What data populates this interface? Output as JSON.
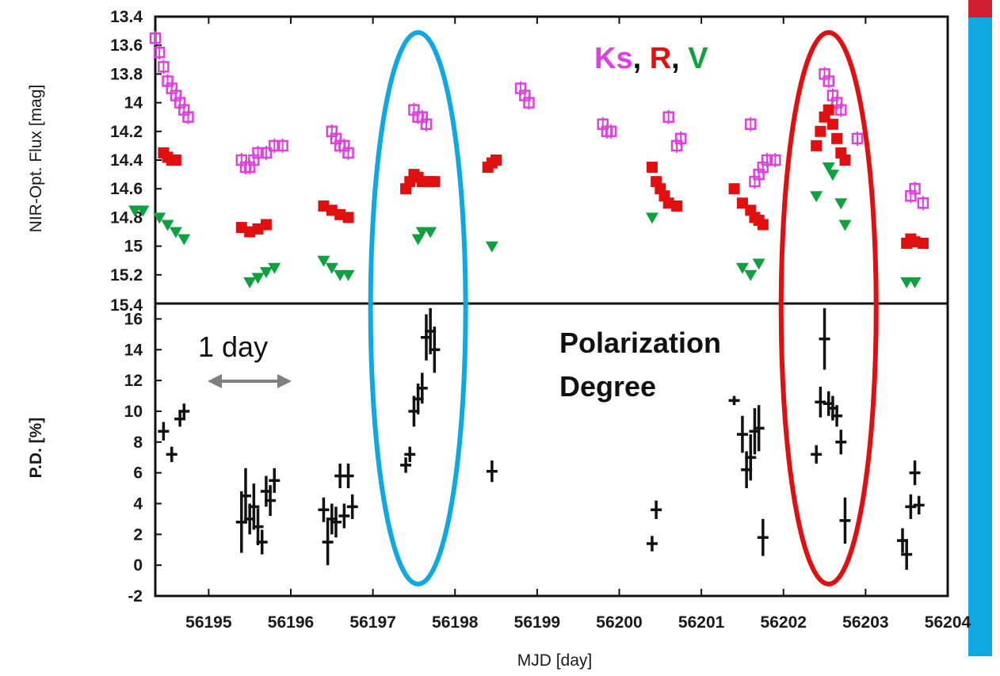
{
  "chart_data": [
    {
      "type": "scatter",
      "panel": "top",
      "ylabel": "NIR-Opt. Flux [mag]",
      "ylim": [
        13.4,
        15.4
      ],
      "y_inverted": true,
      "yticks": [
        "13.4",
        "13.6",
        "13.8",
        "14",
        "14.2",
        "14.4",
        "14.6",
        "14.8",
        "15",
        "15.2"
      ],
      "bottom_tick_label": "15.4",
      "legend": {
        "parts": [
          {
            "text": "Ks",
            "color": "#e040e0"
          },
          {
            "text": ", ",
            "color": "#111111"
          },
          {
            "text": "R",
            "color": "#e01010"
          },
          {
            "text": ", ",
            "color": "#111111"
          },
          {
            "text": "V",
            "color": "#10a040"
          }
        ]
      },
      "series": [
        {
          "name": "Ks",
          "color": "#e040e0",
          "marker": "square",
          "x": [
            56194.35,
            56194.4,
            56194.45,
            56194.5,
            56194.55,
            56194.6,
            56194.65,
            56194.7,
            56194.75,
            56195.4,
            56195.45,
            56195.5,
            56195.55,
            56195.6,
            56195.7,
            56195.8,
            56195.9,
            56196.5,
            56196.55,
            56196.6,
            56196.65,
            56196.7,
            56197.5,
            56197.55,
            56197.6,
            56197.65,
            56198.8,
            56198.85,
            56198.9,
            56199.8,
            56199.85,
            56199.9,
            56200.6,
            56200.7,
            56200.75,
            56201.6,
            56201.65,
            56201.7,
            56201.75,
            56201.8,
            56201.9,
            56202.5,
            56202.55,
            56202.6,
            56202.65,
            56202.7,
            56202.9,
            56203.55,
            56203.6,
            56203.7
          ],
          "y": [
            13.55,
            13.65,
            13.75,
            13.85,
            13.9,
            13.95,
            14.0,
            14.05,
            14.1,
            14.4,
            14.45,
            14.45,
            14.4,
            14.35,
            14.35,
            14.3,
            14.3,
            14.2,
            14.25,
            14.3,
            14.3,
            14.35,
            14.05,
            14.1,
            14.1,
            14.15,
            13.9,
            13.95,
            14.0,
            14.15,
            14.2,
            14.2,
            14.1,
            14.3,
            14.25,
            14.15,
            14.55,
            14.5,
            14.45,
            14.4,
            14.4,
            13.8,
            13.85,
            13.95,
            14.0,
            14.05,
            14.25,
            14.65,
            14.6,
            14.7
          ]
        },
        {
          "name": "R",
          "color": "#e01010",
          "marker": "square",
          "x": [
            56194.45,
            56194.5,
            56194.55,
            56194.6,
            56195.4,
            56195.5,
            56195.6,
            56195.7,
            56196.4,
            56196.5,
            56196.6,
            56196.7,
            56197.4,
            56197.45,
            56197.5,
            56197.55,
            56197.6,
            56197.7,
            56197.75,
            56198.4,
            56198.45,
            56198.5,
            56200.4,
            56200.45,
            56200.5,
            56200.55,
            56200.6,
            56200.7,
            56201.4,
            56201.5,
            56201.6,
            56201.65,
            56201.7,
            56201.75,
            56202.4,
            56202.45,
            56202.5,
            56202.55,
            56202.6,
            56202.65,
            56202.7,
            56202.75,
            56203.5,
            56203.55,
            56203.6,
            56203.7
          ],
          "y": [
            14.35,
            14.38,
            14.4,
            14.4,
            14.87,
            14.9,
            14.88,
            14.85,
            14.72,
            14.75,
            14.78,
            14.8,
            14.6,
            14.55,
            14.5,
            14.52,
            14.55,
            14.55,
            14.55,
            14.45,
            14.42,
            14.4,
            14.45,
            14.55,
            14.6,
            14.65,
            14.7,
            14.72,
            14.6,
            14.7,
            14.75,
            14.8,
            14.82,
            14.85,
            14.3,
            14.2,
            14.1,
            14.05,
            14.15,
            14.25,
            14.35,
            14.4,
            14.98,
            14.95,
            14.97,
            14.98
          ]
        },
        {
          "name": "V",
          "color": "#10a040",
          "marker": "triangle-down",
          "x": [
            56194.1,
            56194.2,
            56194.4,
            56194.5,
            56194.6,
            56194.7,
            56195.5,
            56195.6,
            56195.7,
            56195.8,
            56196.4,
            56196.5,
            56196.6,
            56196.7,
            56197.55,
            56197.6,
            56197.7,
            56198.45,
            56200.4,
            56201.5,
            56201.6,
            56201.7,
            56202.4,
            56202.55,
            56202.6,
            56202.7,
            56202.75,
            56203.5,
            56203.6
          ],
          "y": [
            14.75,
            14.75,
            14.8,
            14.85,
            14.9,
            14.95,
            15.25,
            15.22,
            15.18,
            15.15,
            15.1,
            15.15,
            15.2,
            15.2,
            14.95,
            14.9,
            14.9,
            15.0,
            14.8,
            15.15,
            15.2,
            15.12,
            14.65,
            14.45,
            14.5,
            14.7,
            14.85,
            15.25,
            15.25
          ]
        }
      ]
    },
    {
      "type": "scatter",
      "panel": "bottom",
      "title": "Polarization Degree",
      "title_lines": [
        "Polarization",
        "Degree"
      ],
      "xlabel": "MJD [day]",
      "ylabel": "P.D. [%]",
      "xlim": [
        56194.35,
        56204.0
      ],
      "ylim": [
        -2,
        17
      ],
      "yticks": [
        "16",
        "14",
        "12",
        "10",
        "8",
        "6",
        "4",
        "2",
        "0",
        "-2"
      ],
      "xticks": [
        "56195",
        "56196",
        "56197",
        "56198",
        "56199",
        "56200",
        "56201",
        "56202",
        "56203",
        "56204"
      ],
      "scale_annotation": "1 day",
      "series": [
        {
          "name": "",
          "color": "#111111",
          "marker": "cross",
          "x": [
            56194.45,
            56194.55,
            56194.65,
            56194.7,
            56195.4,
            56195.45,
            56195.5,
            56195.55,
            56195.6,
            56195.65,
            56195.7,
            56195.75,
            56195.8,
            56196.4,
            56196.45,
            56196.5,
            56196.55,
            56196.6,
            56196.65,
            56196.7,
            56196.75,
            56197.4,
            56197.45,
            56197.5,
            56197.55,
            56197.6,
            56197.65,
            56197.7,
            56197.75,
            56198.45,
            56200.4,
            56200.45,
            56201.4,
            56201.5,
            56201.55,
            56201.6,
            56201.65,
            56201.7,
            56201.75,
            56202.4,
            56202.45,
            56202.5,
            56202.55,
            56202.6,
            56202.65,
            56202.7,
            56202.75,
            56203.45,
            56203.5,
            56203.55,
            56203.6,
            56203.65
          ],
          "y": [
            8.7,
            7.2,
            9.5,
            10.0,
            2.8,
            4.5,
            3.0,
            3.8,
            2.5,
            1.5,
            4.8,
            4.2,
            5.5,
            3.6,
            1.5,
            3.0,
            2.8,
            5.8,
            3.2,
            5.8,
            3.8,
            6.5,
            7.2,
            10.0,
            10.8,
            11.5,
            14.8,
            15.2,
            14.0,
            6.1,
            1.4,
            3.6,
            10.7,
            8.5,
            6.2,
            7.0,
            8.7,
            8.9,
            1.8,
            7.2,
            10.6,
            14.7,
            10.5,
            10.2,
            9.7,
            8.0,
            2.9,
            1.6,
            0.7,
            3.8,
            6.0,
            3.9
          ],
          "yerr": [
            0.6,
            0.5,
            0.5,
            0.5,
            2.0,
            1.8,
            1.0,
            1.5,
            1.2,
            0.8,
            1.0,
            1.0,
            0.8,
            0.8,
            1.5,
            1.0,
            1.0,
            0.8,
            0.8,
            0.8,
            0.8,
            0.5,
            0.5,
            1.0,
            1.0,
            1.0,
            1.5,
            1.5,
            1.5,
            0.7,
            0.5,
            0.6,
            0.3,
            1.2,
            1.2,
            1.5,
            1.5,
            1.5,
            1.2,
            0.6,
            1.0,
            2.0,
            0.8,
            0.8,
            0.7,
            0.8,
            1.5,
            0.8,
            1.0,
            0.8,
            0.8,
            0.6
          ]
        }
      ]
    }
  ],
  "highlights": [
    {
      "name": "cyan-ellipse",
      "color": "#10a8e0",
      "x_center": 56197.55
    },
    {
      "name": "red-ellipse",
      "color": "#e01010",
      "x_center": 56202.55
    }
  ],
  "side_bar": {
    "color": "#10a8e0",
    "accent_color": "#d02030"
  }
}
